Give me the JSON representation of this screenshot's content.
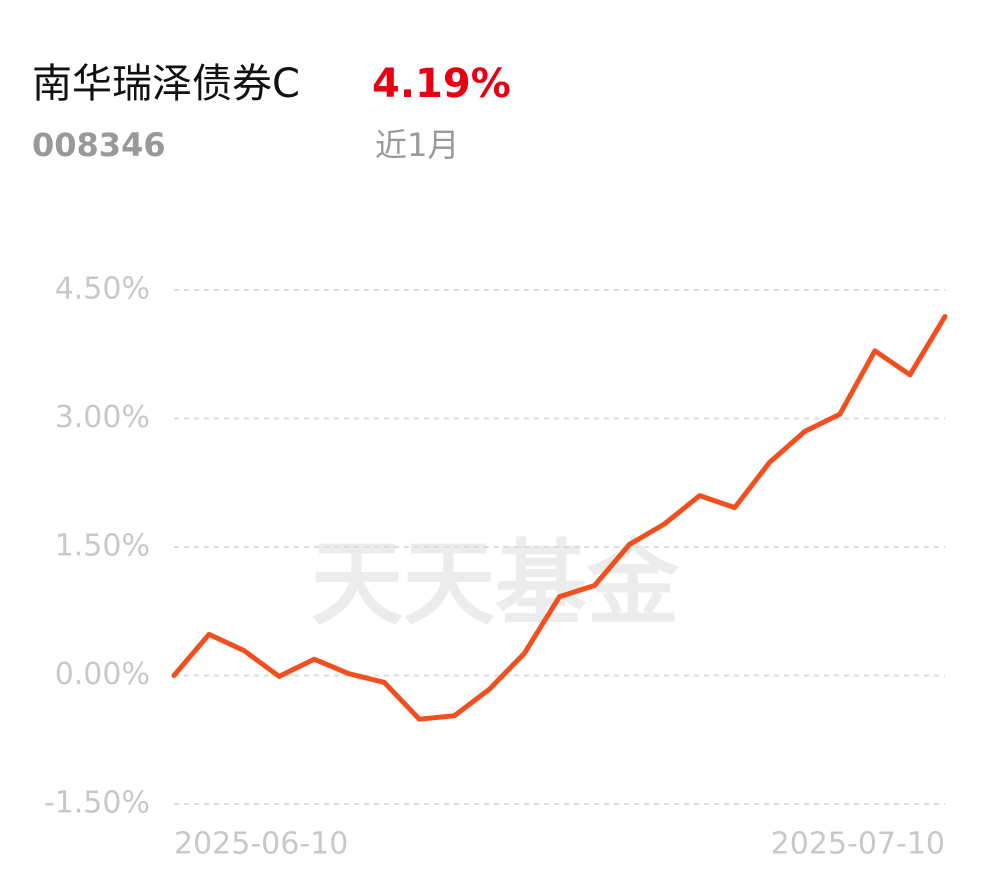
{
  "header": {
    "name": "南华瑞泽债券C",
    "return": "4.19%",
    "code": "008346",
    "period": "近1月"
  },
  "chart_data": {
    "type": "line",
    "watermark": "天天基金",
    "categories": [
      "2025-06-10",
      null,
      null,
      null,
      null,
      null,
      null,
      null,
      null,
      null,
      null,
      null,
      null,
      null,
      null,
      null,
      null,
      null,
      null,
      null,
      null,
      null,
      "2025-07-10"
    ],
    "series": [
      {
        "name": "南华瑞泽债券C",
        "color": "#f24e1e",
        "values": [
          0.0,
          0.48,
          0.29,
          -0.01,
          0.19,
          0.02,
          -0.08,
          -0.51,
          -0.47,
          -0.16,
          0.26,
          0.92,
          1.05,
          1.53,
          1.77,
          2.1,
          1.96,
          2.49,
          2.85,
          3.05,
          3.79,
          3.51,
          4.19
        ]
      }
    ],
    "ylim": [
      -1.5,
      4.5
    ],
    "yticks": [
      {
        "value": -1.5,
        "label": "-1.50%"
      },
      {
        "value": 0,
        "label": "0.00%"
      },
      {
        "value": 1.5,
        "label": "1.50%"
      },
      {
        "value": 3,
        "label": "3.00%"
      },
      {
        "value": 4.5,
        "label": "4.50%"
      }
    ],
    "grid": true
  }
}
